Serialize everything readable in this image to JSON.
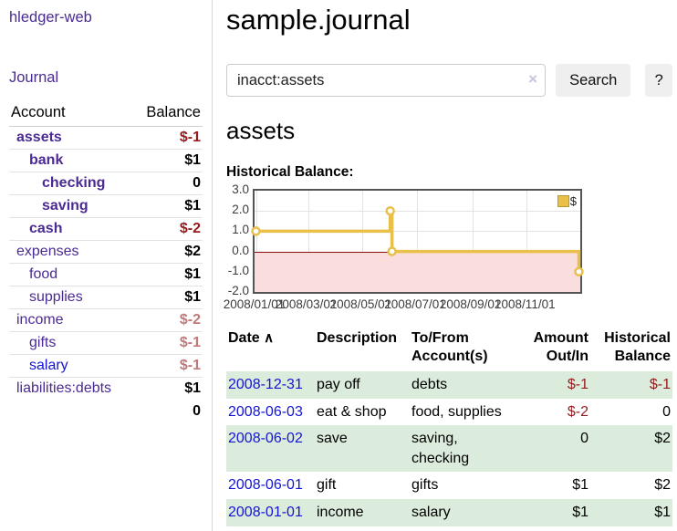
{
  "app": {
    "brand": "hledger-web"
  },
  "colors": {
    "purple": "#4b2a94",
    "link_blue": "#1414d6",
    "negative_red": "#96191c",
    "soft_negative_red": "#c07979",
    "row_stripe_green": "#dcecdc",
    "chart_yellow": "#e9c04a",
    "chart_negative_pink": "#fadddd"
  },
  "sidebar": {
    "journal_link": "Journal",
    "headers": {
      "account": "Account",
      "balance": "Balance"
    },
    "accounts": [
      {
        "name": "assets",
        "balance": "$-1",
        "indent": 1,
        "bold": true,
        "balance_style": "neg-strong",
        "link_color": "purple"
      },
      {
        "name": "bank",
        "balance": "$1",
        "indent": 2,
        "bold": true,
        "balance_style": "pos",
        "link_color": "purple"
      },
      {
        "name": "checking",
        "balance": "0",
        "indent": 3,
        "bold": true,
        "balance_style": "pos",
        "link_color": "purple"
      },
      {
        "name": "saving",
        "balance": "$1",
        "indent": 3,
        "bold": true,
        "balance_style": "pos",
        "link_color": "purple"
      },
      {
        "name": "cash",
        "balance": "$-2",
        "indent": 2,
        "bold": true,
        "balance_style": "neg-strong",
        "link_color": "purple"
      },
      {
        "name": "expenses",
        "balance": "$2",
        "indent": 1,
        "bold": false,
        "balance_style": "pos",
        "link_color": "purple"
      },
      {
        "name": "food",
        "balance": "$1",
        "indent": 2,
        "bold": false,
        "balance_style": "pos",
        "link_color": "purple"
      },
      {
        "name": "supplies",
        "balance": "$1",
        "indent": 2,
        "bold": false,
        "balance_style": "pos",
        "link_color": "purple"
      },
      {
        "name": "income",
        "balance": "$-2",
        "indent": 1,
        "bold": false,
        "balance_style": "neg-soft",
        "link_color": "purple"
      },
      {
        "name": "gifts",
        "balance": "$-1",
        "indent": 2,
        "bold": false,
        "balance_style": "neg-soft",
        "link_color": "purple"
      },
      {
        "name": "salary",
        "balance": "$-1",
        "indent": 2,
        "bold": false,
        "balance_style": "neg-soft",
        "link_color": "blue"
      },
      {
        "name": "liabilities:debts",
        "balance": "$1",
        "indent": 1,
        "bold": false,
        "balance_style": "pos",
        "link_color": "purple"
      }
    ],
    "total": "0"
  },
  "header": {
    "title": "sample.journal"
  },
  "search": {
    "value": "inacct:assets",
    "placeholder": "",
    "clear_icon": "×",
    "button_label": "Search",
    "help_label": "?"
  },
  "account_page": {
    "heading": "assets",
    "chart_label": "Historical Balance:"
  },
  "chart_data": {
    "type": "line",
    "title": "Historical Balance",
    "step": true,
    "series": [
      {
        "name": "$",
        "points": [
          [
            "2008-01-01",
            1
          ],
          [
            "2008-06-01",
            2
          ],
          [
            "2008-06-03",
            0
          ],
          [
            "2008-12-31",
            -1
          ]
        ]
      }
    ],
    "x_range": [
      "2008-01-01",
      "2008-12-31"
    ],
    "x_ticks": [
      {
        "date": "2008-01-01",
        "label": "2008/01/01"
      },
      {
        "date": "2008-03-01",
        "label": "2008/03/01"
      },
      {
        "date": "2008-05-01",
        "label": "2008/05/01"
      },
      {
        "date": "2008-07-01",
        "label": "2008/07/01"
      },
      {
        "date": "2008-09-01",
        "label": "2008/09/01"
      },
      {
        "date": "2008-11-01",
        "label": "2008/11/01"
      }
    ],
    "y_ticks": [
      "3.0",
      "2.0",
      "1.0",
      "0.0",
      "-1.0",
      "-2.0"
    ],
    "ylim": [
      -2,
      3
    ],
    "grid": true,
    "negative_region_shaded": true,
    "legend": {
      "label": "$",
      "position": "top-right"
    }
  },
  "register": {
    "headers": {
      "date": "Date",
      "sort_indicator": "∧",
      "description": "Description",
      "accounts": "To/From Account(s)",
      "amount": "Amount Out/In",
      "balance": "Historical Balance"
    },
    "rows": [
      {
        "date": "2008-12-31",
        "description": "pay off",
        "accounts": "debts",
        "amount": "$-1",
        "balance": "$-1"
      },
      {
        "date": "2008-06-03",
        "description": "eat & shop",
        "accounts": "food, supplies",
        "amount": "$-2",
        "balance": "0"
      },
      {
        "date": "2008-06-02",
        "description": "save",
        "accounts": "saving, checking",
        "amount": "0",
        "balance": "$2"
      },
      {
        "date": "2008-06-01",
        "description": "gift",
        "accounts": "gifts",
        "amount": "$1",
        "balance": "$2"
      },
      {
        "date": "2008-01-01",
        "description": "income",
        "accounts": "salary",
        "amount": "$1",
        "balance": "$1"
      }
    ]
  }
}
